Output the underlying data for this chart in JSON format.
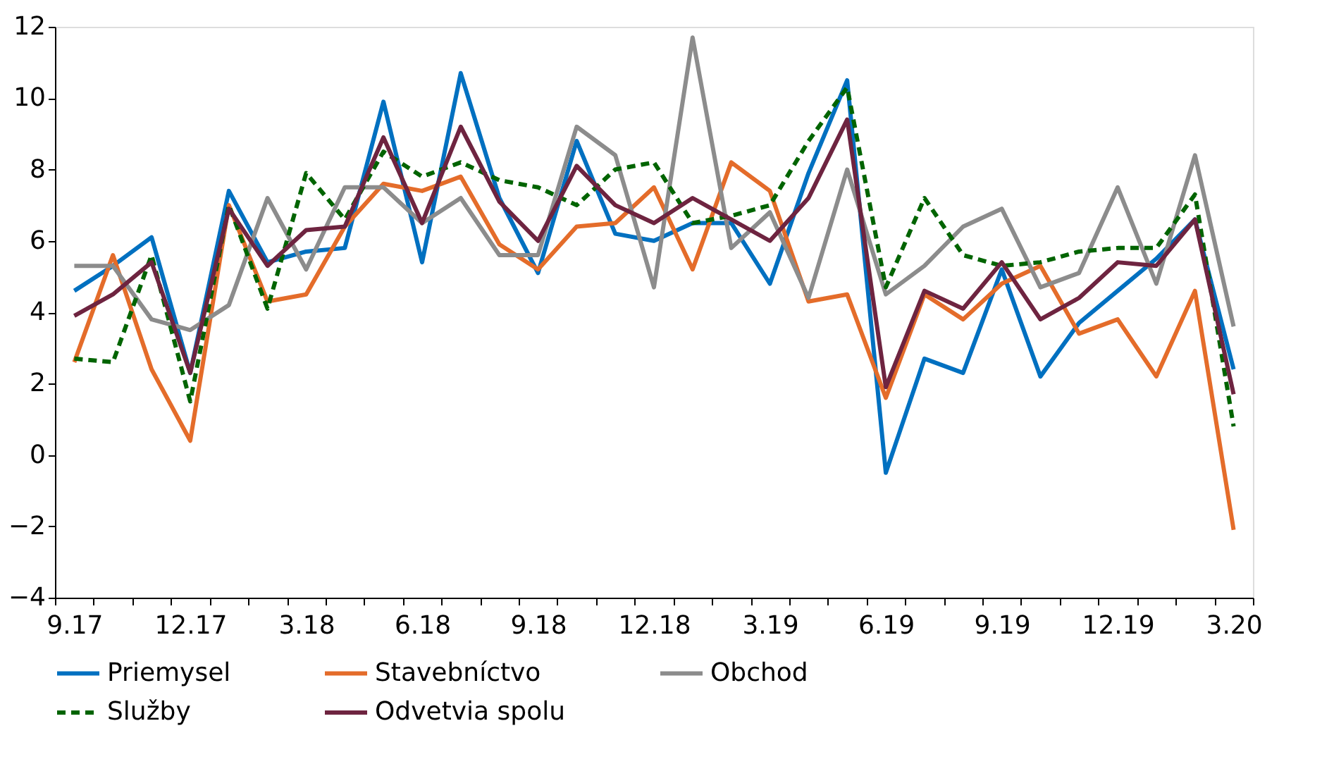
{
  "chart_data": {
    "type": "line",
    "categories": [
      "9.17",
      null,
      null,
      "12.17",
      null,
      null,
      "3.18",
      null,
      null,
      "6.18",
      null,
      null,
      "9.18",
      null,
      null,
      "12.18",
      null,
      null,
      "3.19",
      null,
      null,
      "6.19",
      null,
      null,
      "9.19",
      null,
      null,
      "12.19",
      null,
      null,
      "3.20"
    ],
    "ylim": [
      -4,
      12
    ],
    "yticks": [
      -4,
      -2,
      0,
      2,
      4,
      6,
      8,
      10,
      12
    ],
    "grid": false,
    "legend": "bottom",
    "marker": "none",
    "series": [
      {
        "name": "Priemysel",
        "color": "#0070c0",
        "line_style": "solid",
        "values": [
          4.6,
          5.3,
          6.1,
          2.3,
          7.4,
          5.4,
          5.7,
          5.8,
          9.9,
          5.4,
          10.7,
          7.2,
          5.1,
          8.8,
          6.2,
          6.0,
          6.5,
          6.5,
          4.8,
          7.9,
          10.5,
          -0.5,
          2.7,
          2.3,
          5.2,
          2.2,
          3.7,
          4.6,
          5.5,
          6.6,
          2.4
        ]
      },
      {
        "name": "Stavebníctvo",
        "color": "#e46c2a",
        "line_style": "solid",
        "values": [
          2.6,
          5.6,
          2.4,
          0.4,
          7.0,
          4.3,
          4.5,
          6.4,
          7.6,
          7.4,
          7.8,
          5.9,
          5.2,
          6.4,
          6.5,
          7.5,
          5.2,
          8.2,
          7.4,
          4.3,
          4.5,
          1.6,
          4.5,
          3.8,
          4.8,
          5.3,
          3.4,
          3.8,
          2.2,
          4.6,
          -2.1
        ]
      },
      {
        "name": "Obchod",
        "color": "#8c8c8c",
        "line_style": "solid",
        "values": [
          5.3,
          5.3,
          3.8,
          3.5,
          4.2,
          7.2,
          5.2,
          7.5,
          7.5,
          6.5,
          7.2,
          5.6,
          5.6,
          9.2,
          8.4,
          4.7,
          11.7,
          5.8,
          6.8,
          4.4,
          8.0,
          4.5,
          5.3,
          6.4,
          6.9,
          4.7,
          5.1,
          7.5,
          4.8,
          8.4,
          3.6
        ]
      },
      {
        "name": "Služby",
        "color": "#006400",
        "line_style": "dashed",
        "values": [
          2.7,
          2.6,
          5.6,
          1.5,
          7.0,
          4.1,
          7.9,
          6.6,
          8.5,
          7.8,
          8.2,
          7.7,
          7.5,
          7.0,
          8.0,
          8.2,
          6.5,
          6.7,
          7.0,
          8.8,
          10.3,
          4.7,
          7.2,
          5.6,
          5.3,
          5.4,
          5.7,
          5.8,
          5.8,
          7.3,
          0.8
        ]
      },
      {
        "name": "Odvetvia spolu",
        "color": "#6e2440",
        "line_style": "solid",
        "values": [
          3.9,
          4.5,
          5.4,
          2.3,
          6.9,
          5.3,
          6.3,
          6.4,
          8.9,
          6.5,
          9.2,
          7.1,
          6.0,
          8.1,
          7.0,
          6.5,
          7.2,
          6.6,
          6.0,
          7.2,
          9.4,
          1.9,
          4.6,
          4.1,
          5.4,
          3.8,
          4.4,
          5.4,
          5.3,
          6.6,
          1.7
        ]
      }
    ]
  }
}
